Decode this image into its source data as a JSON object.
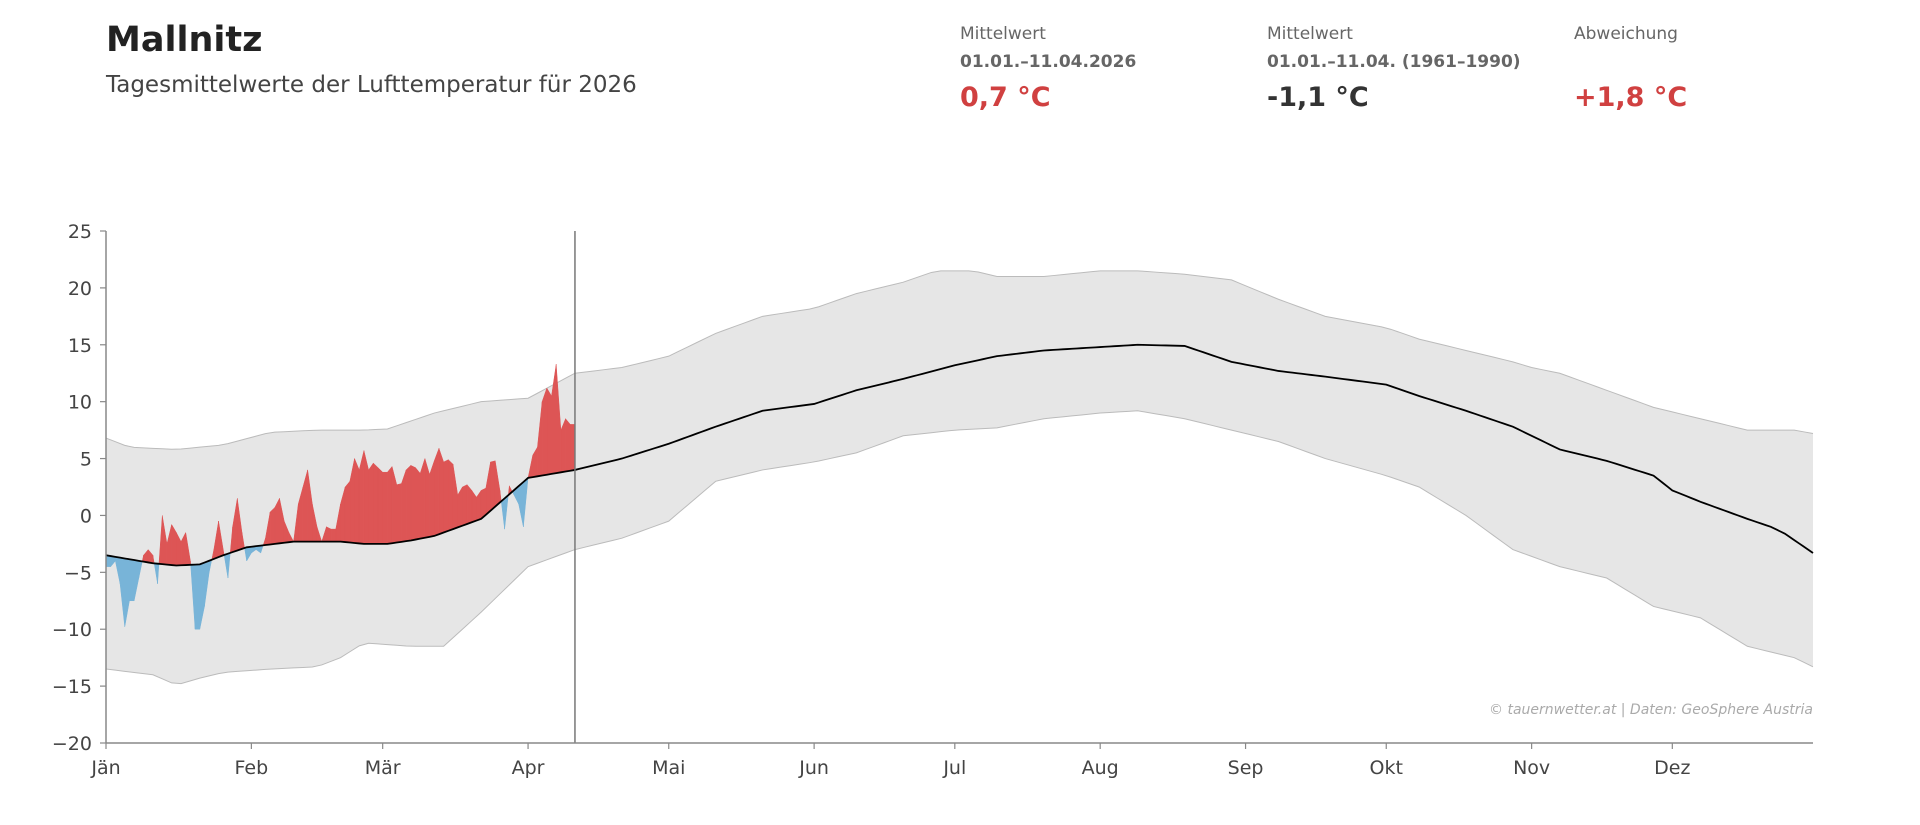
{
  "header": {
    "title": "Mallnitz",
    "subtitle": "Tagesmittelwerte der Lufttemperatur für 2026"
  },
  "stats": [
    {
      "label": "Mittelwert",
      "period": "01.01.–11.04.2026",
      "value": "0,7 °C",
      "color": "#d04040"
    },
    {
      "label": "Mittelwert",
      "period": "01.01.–11.04. (1961–1990)",
      "value": "-1,1 °C",
      "color": "#333333"
    },
    {
      "label": "Abweichung",
      "period": "",
      "value": "+1,8 °C",
      "color": "#d04040"
    }
  ],
  "colors": {
    "above": "#dd5555",
    "below": "#78b4d8",
    "band": "#e6e6e6",
    "mean": "#000000"
  },
  "chart_data": {
    "type": "area",
    "title": "Tagesmittelwerte der Lufttemperatur für 2026",
    "ylim": [
      -20,
      25
    ],
    "yticks": [
      25,
      20,
      15,
      10,
      5,
      0,
      -5,
      -10,
      -15,
      -20
    ],
    "ytick_labels": [
      "25",
      "20",
      "15",
      "10",
      "5",
      "0",
      "−5",
      "−10",
      "−15",
      "−20"
    ],
    "xlim_days": [
      0,
      364
    ],
    "months": [
      {
        "label": "Jän",
        "day": 0
      },
      {
        "label": "Feb",
        "day": 31
      },
      {
        "label": "Mär",
        "day": 59
      },
      {
        "label": "Apr",
        "day": 90
      },
      {
        "label": "Mai",
        "day": 120
      },
      {
        "label": "Jun",
        "day": 151
      },
      {
        "label": "Jul",
        "day": 181
      },
      {
        "label": "Aug",
        "day": 212
      },
      {
        "label": "Sep",
        "day": 243
      },
      {
        "label": "Okt",
        "day": 273
      },
      {
        "label": "Nov",
        "day": 304
      },
      {
        "label": "Dez",
        "day": 334
      }
    ],
    "current_day": 100,
    "climate_mean": [
      [
        0,
        -3.5
      ],
      [
        10,
        -4.2
      ],
      [
        15,
        -4.4
      ],
      [
        20,
        -4.3
      ],
      [
        25,
        -3.5
      ],
      [
        30,
        -2.8
      ],
      [
        40,
        -2.3
      ],
      [
        50,
        -2.3
      ],
      [
        55,
        -2.5
      ],
      [
        60,
        -2.5
      ],
      [
        65,
        -2.2
      ],
      [
        70,
        -1.8
      ],
      [
        80,
        -0.3
      ],
      [
        90,
        3.3
      ],
      [
        100,
        4.0
      ],
      [
        110,
        5.0
      ],
      [
        120,
        6.3
      ],
      [
        130,
        7.8
      ],
      [
        140,
        9.2
      ],
      [
        151,
        9.8
      ],
      [
        160,
        11
      ],
      [
        170,
        12
      ],
      [
        181,
        13.2
      ],
      [
        190,
        14
      ],
      [
        200,
        14.5
      ],
      [
        212,
        14.8
      ],
      [
        220,
        15
      ],
      [
        230,
        14.9
      ],
      [
        240,
        13.5
      ],
      [
        250,
        12.7
      ],
      [
        260,
        12.2
      ],
      [
        273,
        11.5
      ],
      [
        280,
        10.5
      ],
      [
        290,
        9.2
      ],
      [
        300,
        7.8
      ],
      [
        310,
        5.8
      ],
      [
        320,
        4.8
      ],
      [
        330,
        3.5
      ],
      [
        334,
        2.2
      ],
      [
        340,
        1.2
      ],
      [
        350,
        -0.3
      ],
      [
        355,
        -1.0
      ],
      [
        358,
        -1.6
      ],
      [
        364,
        -3.3
      ]
    ],
    "climate_upper": [
      [
        0,
        6.8
      ],
      [
        5,
        6
      ],
      [
        15,
        5.8
      ],
      [
        25,
        6.2
      ],
      [
        35,
        7.3
      ],
      [
        45,
        7.5
      ],
      [
        55,
        7.5
      ],
      [
        60,
        7.6
      ],
      [
        70,
        9
      ],
      [
        80,
        10
      ],
      [
        90,
        10.3
      ],
      [
        100,
        12.5
      ],
      [
        110,
        13
      ],
      [
        120,
        14
      ],
      [
        130,
        16
      ],
      [
        140,
        17.5
      ],
      [
        151,
        18.2
      ],
      [
        160,
        19.5
      ],
      [
        170,
        20.5
      ],
      [
        177,
        21.5
      ],
      [
        185,
        21.5
      ],
      [
        190,
        21
      ],
      [
        200,
        21
      ],
      [
        212,
        21.5
      ],
      [
        220,
        21.5
      ],
      [
        230,
        21.2
      ],
      [
        240,
        20.7
      ],
      [
        250,
        19
      ],
      [
        260,
        17.5
      ],
      [
        273,
        16.5
      ],
      [
        280,
        15.5
      ],
      [
        290,
        14.5
      ],
      [
        300,
        13.5
      ],
      [
        304,
        13
      ],
      [
        310,
        12.5
      ],
      [
        320,
        11
      ],
      [
        330,
        9.5
      ],
      [
        340,
        8.5
      ],
      [
        350,
        7.5
      ],
      [
        360,
        7.5
      ],
      [
        364,
        7.2
      ]
    ],
    "climate_lower": [
      [
        0,
        -13.5
      ],
      [
        10,
        -14
      ],
      [
        15,
        -14.9
      ],
      [
        20,
        -14.3
      ],
      [
        25,
        -13.8
      ],
      [
        35,
        -13.5
      ],
      [
        45,
        -13.3
      ],
      [
        50,
        -12.5
      ],
      [
        55,
        -11.2
      ],
      [
        65,
        -11.5
      ],
      [
        72,
        -11.5
      ],
      [
        80,
        -8.5
      ],
      [
        90,
        -4.5
      ],
      [
        100,
        -3
      ],
      [
        110,
        -2
      ],
      [
        120,
        -0.5
      ],
      [
        130,
        3
      ],
      [
        140,
        4
      ],
      [
        151,
        4.7
      ],
      [
        160,
        5.5
      ],
      [
        170,
        7
      ],
      [
        181,
        7.5
      ],
      [
        190,
        7.7
      ],
      [
        200,
        8.5
      ],
      [
        212,
        9
      ],
      [
        220,
        9.2
      ],
      [
        230,
        8.5
      ],
      [
        240,
        7.5
      ],
      [
        250,
        6.5
      ],
      [
        260,
        5
      ],
      [
        273,
        3.5
      ],
      [
        280,
        2.5
      ],
      [
        290,
        0
      ],
      [
        300,
        -3
      ],
      [
        310,
        -4.5
      ],
      [
        320,
        -5.5
      ],
      [
        330,
        -8
      ],
      [
        340,
        -9
      ],
      [
        350,
        -11.5
      ],
      [
        360,
        -12.5
      ],
      [
        364,
        -13.3
      ]
    ],
    "daily_2026": [
      -4.5,
      -4.5,
      -4,
      -6,
      -9.8,
      -7.5,
      -7.5,
      -5.5,
      -3.5,
      -3,
      -3.5,
      -6,
      0,
      -2.5,
      -0.8,
      -1.5,
      -2.3,
      -1.5,
      -4,
      -10,
      -10,
      -8,
      -5,
      -3,
      -0.5,
      -3,
      -5.5,
      -1,
      1.5,
      -1.5,
      -4,
      -3.3,
      -3,
      -3.3,
      -2,
      0.3,
      0.7,
      1.5,
      -0.5,
      -1.5,
      -2.3,
      1,
      2.5,
      4,
      1,
      -1,
      -2.3,
      -1,
      -1.2,
      -1.2,
      1,
      2.5,
      3,
      5,
      4,
      5.7,
      4,
      4.6,
      4.2,
      3.8,
      3.8,
      4.3,
      2.7,
      2.8,
      4,
      4.4,
      4.2,
      3.7,
      5,
      3.6,
      4.8,
      5.9,
      4.7,
      4.9,
      4.5,
      1.8,
      2.5,
      2.7,
      2.2,
      1.6,
      2.2,
      2.4,
      4.7,
      4.8,
      2.2,
      -1.2,
      2.6,
      1.8,
      1,
      -1,
      3.3,
      5.3,
      6,
      10,
      11.2,
      10.5,
      13.3,
      7.5,
      8.5,
      8,
      8
    ],
    "legend": "none",
    "annotation": "© tauernwetter.at | Daten: GeoSphere Austria"
  }
}
